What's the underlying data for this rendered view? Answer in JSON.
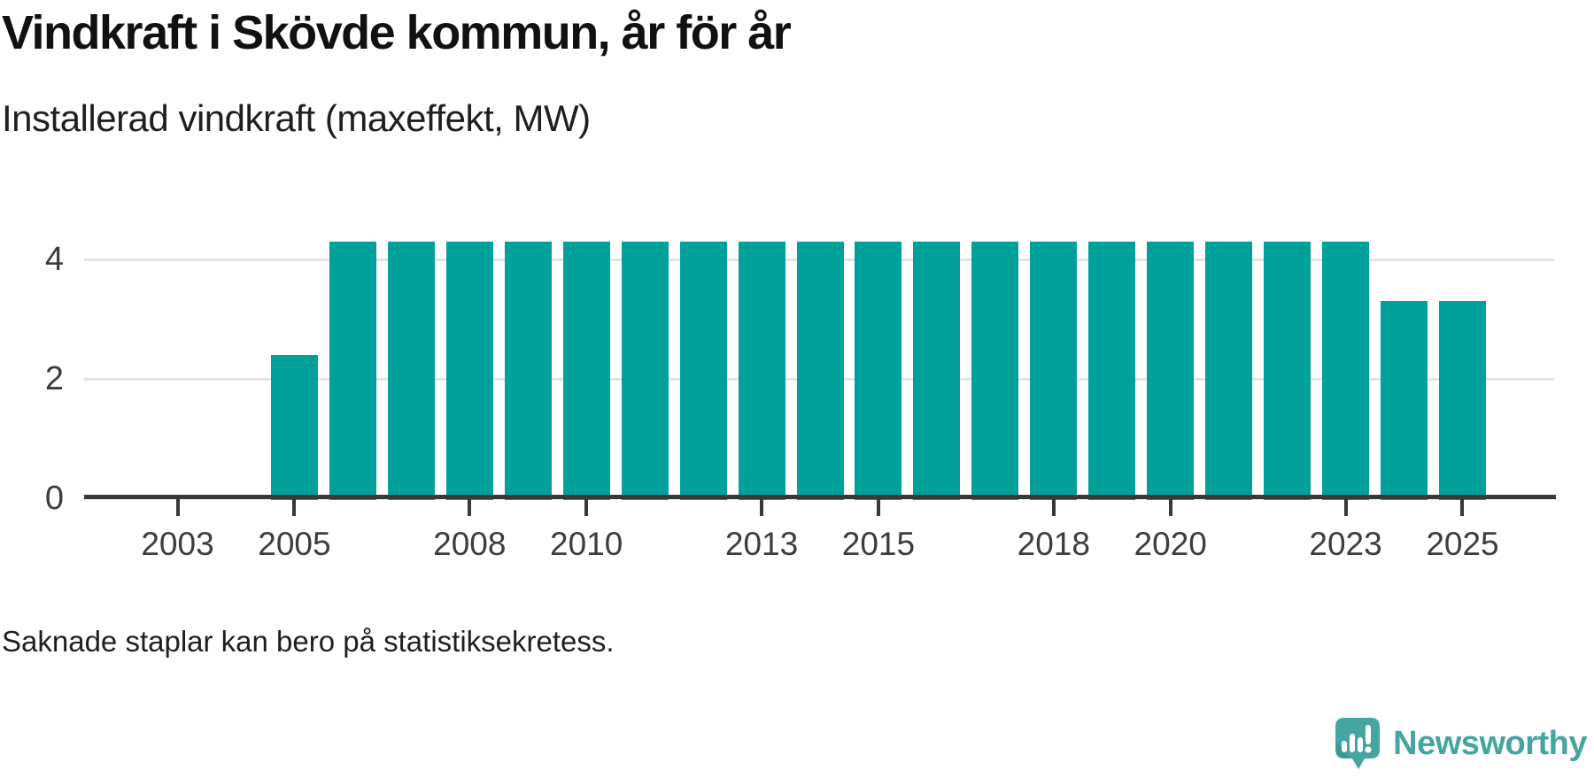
{
  "header": {
    "title": "Vindkraft i Skövde kommun, år för år",
    "subtitle": "Installerad vindkraft (maxeffekt, MW)"
  },
  "footer": {
    "note": "Saknade staplar kan bero på statistiksekretess.",
    "brand": "Newsworthy"
  },
  "colors": {
    "bar": "#00a19a",
    "axis": "#3b3734",
    "grid": "#e4e4e4",
    "title_text": "#111111",
    "body_text": "#1f1f1f",
    "tick_label_text": "#3d3d3d",
    "brand_teal": "#45a5a0",
    "brand_teal_dark": "#3f968f"
  },
  "icons": {
    "brand_logo": "speech-bubble-bar-chart-icon"
  },
  "chart_data": {
    "type": "bar",
    "title": "Vindkraft i Skövde kommun, år för år",
    "subtitle": "Installerad vindkraft (maxeffekt, MW)",
    "xlabel": "",
    "ylabel": "Installerad vindkraft (maxeffekt, MW)",
    "categories": [
      2005,
      2006,
      2007,
      2008,
      2009,
      2010,
      2011,
      2012,
      2013,
      2014,
      2015,
      2016,
      2017,
      2018,
      2019,
      2020,
      2021,
      2022,
      2023,
      2024,
      2025
    ],
    "values": [
      2.4,
      4.3,
      4.3,
      4.3,
      4.3,
      4.3,
      4.3,
      4.3,
      4.3,
      4.3,
      4.3,
      4.3,
      4.3,
      4.3,
      4.3,
      4.3,
      4.3,
      4.3,
      4.3,
      3.3,
      3.3
    ],
    "x_ticks": [
      2003,
      2005,
      2008,
      2010,
      2013,
      2015,
      2018,
      2020,
      2023,
      2025
    ],
    "y_ticks": [
      0,
      2,
      4
    ],
    "xlim": [
      2001.4,
      2026.6
    ],
    "ylim": [
      0,
      4.73
    ],
    "grid": "horizontal-only",
    "legend": false,
    "note": "Saknade staplar kan bero på statistiksekretess."
  }
}
